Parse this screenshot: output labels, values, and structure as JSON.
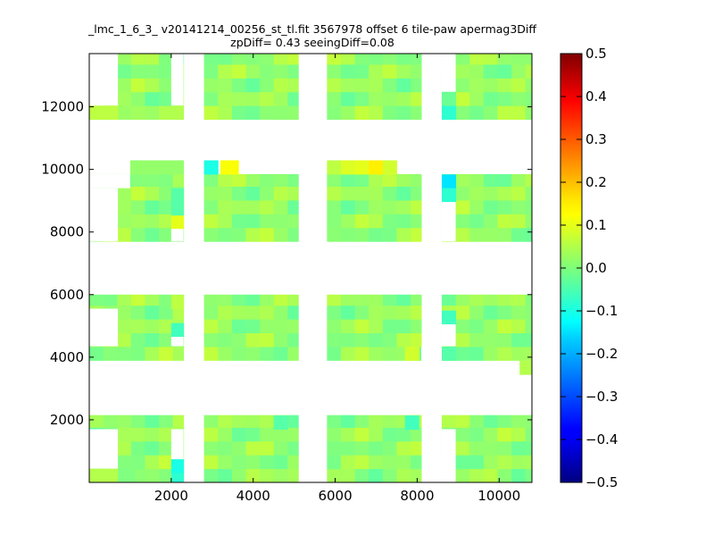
{
  "chart_data": {
    "type": "heatmap",
    "title_lines": [
      "_lmc_1_6_3_ v20141214_00256_st_tl.fit 3567978 offset 6 tile-paw apermag3Diff",
      "zpDiff= 0.43 seeingDiff=0.08"
    ],
    "xlabel": "",
    "ylabel": "",
    "xlim": [
      0,
      10800
    ],
    "ylim": [
      0,
      13700
    ],
    "x_ticks": [
      2000,
      4000,
      6000,
      8000,
      10000
    ],
    "y_ticks": [
      2000,
      4000,
      6000,
      8000,
      10000,
      12000
    ],
    "grid": false,
    "colorbar": {
      "range": [
        -0.5,
        0.5
      ],
      "ticks": [
        0.5,
        0.4,
        0.3,
        0.2,
        0.1,
        0.0,
        -0.1,
        -0.2,
        -0.3,
        -0.4,
        -0.5
      ],
      "tick_labels": [
        "0.5",
        "0.4",
        "0.3",
        "0.2",
        "0.1",
        "0.0",
        "−0.1",
        "−0.2",
        "−0.3",
        "−0.4",
        "−0.5"
      ],
      "colormap": "jet"
    },
    "cell_size": [
      340,
      440
    ],
    "detector_columns": [
      {
        "x0": 0,
        "x1": 2300
      },
      {
        "x0": 2800,
        "x1": 5100
      },
      {
        "x0": 5800,
        "x1": 8100
      },
      {
        "x0": 8600,
        "x1": 10800
      }
    ],
    "detector_rows": [
      {
        "y0": 0,
        "y1": 2150
      },
      {
        "y0": 3900,
        "y1": 6000
      },
      {
        "y0": 7700,
        "y1": 9850
      },
      {
        "y0": 11600,
        "y1": 13700
      }
    ],
    "base_value": 0.02,
    "cells": [
      {
        "x": 0,
        "y": 11600,
        "w": 700,
        "h": 440,
        "v": 0.06
      },
      {
        "x": 8600,
        "y": 11600,
        "w": 340,
        "h": 440,
        "v": -0.08
      },
      {
        "x": 8600,
        "y": 12040,
        "w": 340,
        "h": 440,
        "v": -0.02
      },
      {
        "x": 1000,
        "y": 9850,
        "w": 1300,
        "h": 440,
        "v": 0.02
      },
      {
        "x": 2800,
        "y": 9850,
        "w": 340,
        "h": 440,
        "v": -0.1
      },
      {
        "x": 3200,
        "y": 9850,
        "w": 440,
        "h": 440,
        "v": 0.12
      },
      {
        "x": 5800,
        "y": 9850,
        "w": 340,
        "h": 440,
        "v": 0.06
      },
      {
        "x": 6140,
        "y": 9850,
        "w": 340,
        "h": 440,
        "v": 0.09
      },
      {
        "x": 6480,
        "y": 9850,
        "w": 340,
        "h": 440,
        "v": 0.1
      },
      {
        "x": 6820,
        "y": 9850,
        "w": 340,
        "h": 440,
        "v": 0.14
      },
      {
        "x": 7160,
        "y": 9850,
        "w": 340,
        "h": 440,
        "v": 0.08
      },
      {
        "x": 8600,
        "y": 9400,
        "w": 340,
        "h": 440,
        "v": -0.15
      },
      {
        "x": 8600,
        "y": 8960,
        "w": 340,
        "h": 440,
        "v": -0.08
      },
      {
        "x": 2000,
        "y": 8100,
        "w": 300,
        "h": 440,
        "v": 0.1
      },
      {
        "x": 2000,
        "y": 8540,
        "w": 300,
        "h": 440,
        "v": -0.04
      },
      {
        "x": 2000,
        "y": 8960,
        "w": 300,
        "h": 440,
        "v": -0.04
      },
      {
        "x": 2000,
        "y": 5550,
        "w": 300,
        "h": 440,
        "v": 0.06
      },
      {
        "x": 2000,
        "y": 4650,
        "w": 300,
        "h": 440,
        "v": -0.06
      },
      {
        "x": 7700,
        "y": 3900,
        "w": 340,
        "h": 440,
        "v": 0.08
      },
      {
        "x": 8600,
        "y": 5050,
        "w": 340,
        "h": 440,
        "v": -0.06
      },
      {
        "x": 8600,
        "y": 3900,
        "w": 340,
        "h": 440,
        "v": -0.04
      },
      {
        "x": 10500,
        "y": 3450,
        "w": 300,
        "h": 440,
        "v": 0.05
      },
      {
        "x": 2000,
        "y": 300,
        "w": 300,
        "h": 440,
        "v": -0.1
      },
      {
        "x": 2000,
        "y": 0,
        "w": 300,
        "h": 300,
        "v": -0.08
      },
      {
        "x": 4500,
        "y": 1700,
        "w": 340,
        "h": 440,
        "v": -0.04
      },
      {
        "x": 7700,
        "y": 1700,
        "w": 340,
        "h": 440,
        "v": -0.06
      },
      {
        "x": 0,
        "y": 0,
        "w": 700,
        "h": 440,
        "v": 0.05
      },
      {
        "x": 700,
        "y": 0,
        "w": 400,
        "h": 440,
        "v": 0.0
      }
    ],
    "masked_regions": [
      {
        "x0": 0,
        "x1": 700,
        "y0": 12040,
        "y1": 13700
      },
      {
        "x0": 0,
        "x1": 700,
        "y0": 7700,
        "y1": 9400
      },
      {
        "x0": 0,
        "x1": 700,
        "y0": 4350,
        "y1": 5550
      },
      {
        "x0": 0,
        "x1": 700,
        "y0": 440,
        "y1": 1700
      },
      {
        "x0": 0,
        "x1": 1000,
        "y0": 9400,
        "y1": 9850
      },
      {
        "x0": 8100,
        "x1": 8600,
        "y0": 3900,
        "y1": 4350
      },
      {
        "x0": 8600,
        "x1": 8940,
        "y0": 12480,
        "y1": 13700
      },
      {
        "x0": 8600,
        "x1": 8940,
        "y0": 7700,
        "y1": 8960
      },
      {
        "x0": 8600,
        "x1": 8940,
        "y0": 4350,
        "y1": 5050
      },
      {
        "x0": 8600,
        "x1": 8940,
        "y0": 0,
        "y1": 1700
      },
      {
        "x0": 2000,
        "x1": 2300,
        "y0": 12040,
        "y1": 13700
      },
      {
        "x0": 2000,
        "x1": 2300,
        "y0": 7700,
        "y1": 8100
      },
      {
        "x0": 2000,
        "x1": 2300,
        "y0": 4350,
        "y1": 4650
      },
      {
        "x0": 2000,
        "x1": 2300,
        "y0": 740,
        "y1": 1700
      }
    ]
  }
}
